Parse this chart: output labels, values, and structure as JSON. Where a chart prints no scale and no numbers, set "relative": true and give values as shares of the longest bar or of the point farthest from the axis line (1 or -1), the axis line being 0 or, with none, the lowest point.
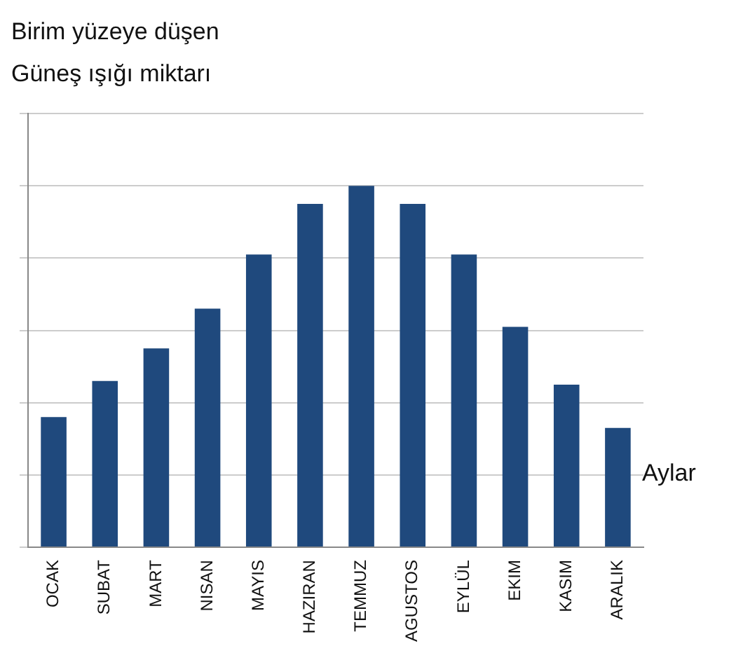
{
  "chart_data": {
    "type": "bar",
    "ylabel": "Birim yüzeye düşen\nGüneş ışığı miktarı",
    "xlabel": "Aylar",
    "categories": [
      "OCAK",
      "SUBAT",
      "MART",
      "NISAN",
      "MAYIS",
      "HAZIRAN",
      "TEMMUZ",
      "AGUSTOS",
      "EYLÜL",
      "EKIM",
      "KASIM",
      "ARALIK"
    ],
    "values": [
      0.36,
      0.46,
      0.55,
      0.66,
      0.81,
      0.95,
      1,
      0.95,
      0.81,
      0.61,
      0.45,
      0.33
    ],
    "color": "#1f497d",
    "relative": true,
    "grid": "y"
  }
}
